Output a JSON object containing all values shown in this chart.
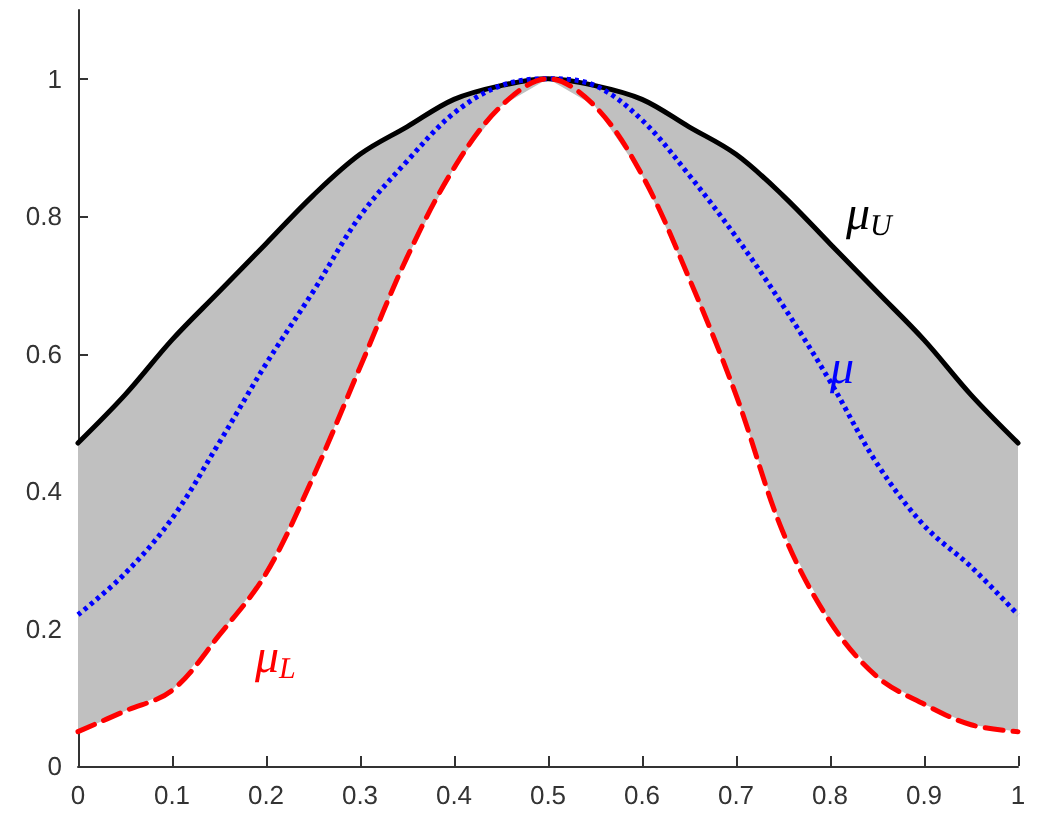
{
  "chart_data": {
    "type": "line",
    "x": [
      0,
      0.05,
      0.1,
      0.15,
      0.2,
      0.25,
      0.3,
      0.35,
      0.4,
      0.45,
      0.5,
      0.55,
      0.6,
      0.65,
      0.7,
      0.75,
      0.8,
      0.85,
      0.9,
      0.95,
      1
    ],
    "series": [
      {
        "name": "μ$_{U}$",
        "color": "#000000",
        "line_style": "solid",
        "values": [
          0.47,
          0.54,
          0.62,
          0.69,
          0.76,
          0.83,
          0.89,
          0.93,
          0.97,
          0.99,
          1,
          0.99,
          0.97,
          0.93,
          0.89,
          0.83,
          0.76,
          0.69,
          0.62,
          0.54,
          0.47
        ]
      },
      {
        "name": "μ",
        "color": "#0000ff",
        "line_style": "dotted",
        "values": [
          0.22,
          0.28,
          0.36,
          0.47,
          0.585,
          0.69,
          0.8,
          0.88,
          0.95,
          0.99,
          1,
          0.99,
          0.94,
          0.86,
          0.77,
          0.67,
          0.56,
          0.44,
          0.35,
          0.29,
          0.22
        ],
        "lower": [
          0.05,
          0.08,
          0.11,
          0.19,
          0.28,
          0.42,
          0.58,
          0.74,
          0.87,
          0.96,
          1,
          0.96,
          0.86,
          0.71,
          0.54,
          0.34,
          0.21,
          0.13,
          0.09,
          0.06,
          0.05
        ],
        "upper": [
          0.47,
          0.54,
          0.62,
          0.69,
          0.76,
          0.83,
          0.89,
          0.93,
          0.97,
          0.99,
          1,
          0.99,
          0.97,
          0.93,
          0.89,
          0.83,
          0.76,
          0.69,
          0.62,
          0.54,
          0.47
        ]
      },
      {
        "name": "μ$_{L}$",
        "color": "#ff0000",
        "line_style": "dashed",
        "values": [
          0.05,
          0.08,
          0.11,
          0.19,
          0.28,
          0.42,
          0.58,
          0.74,
          0.87,
          0.96,
          1,
          0.96,
          0.86,
          0.71,
          0.54,
          0.34,
          0.21,
          0.13,
          0.09,
          0.06,
          0.05
        ]
      }
    ],
    "xlim": [
      0,
      1
    ],
    "xticks": [
      0,
      0.1,
      0.2,
      0.3,
      0.4,
      0.5,
      0.6,
      0.7,
      0.8,
      0.9,
      1
    ],
    "ylim": [
      0,
      1.1
    ],
    "yticks": [
      0,
      0.2,
      0.4,
      0.6,
      0.8,
      1
    ],
    "grid": false,
    "legend": false,
    "marker": "none"
  }
}
